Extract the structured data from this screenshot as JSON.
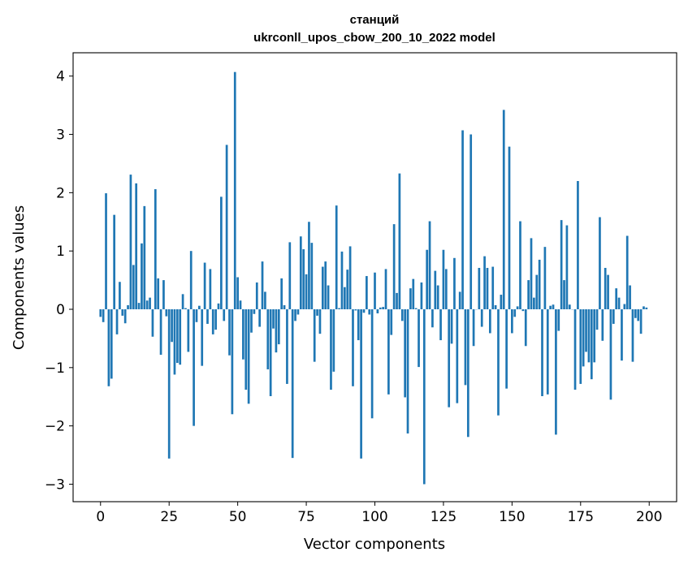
{
  "chart_data": {
    "type": "bar",
    "title": "станций",
    "subtitle": "ukrconll_upos_cbow_200_10_2022 model",
    "xlabel": "Vector components",
    "ylabel": "Components values",
    "xlim": [
      -10,
      210
    ],
    "ylim": [
      -3.3,
      4.4
    ],
    "x_ticks": [
      0,
      25,
      50,
      75,
      100,
      125,
      150,
      175,
      200
    ],
    "x_tick_labels": [
      "0",
      "25",
      "50",
      "75",
      "100",
      "125",
      "150",
      "175",
      "200"
    ],
    "y_ticks": [
      -3,
      -2,
      -1,
      0,
      1,
      2,
      3,
      4
    ],
    "y_tick_labels": [
      "−3",
      "−2",
      "−1",
      "0",
      "1",
      "2",
      "3",
      "4"
    ],
    "grid": false,
    "bar_color": "#1f77b4",
    "values": [
      -0.13,
      -0.22,
      1.99,
      -1.32,
      -1.19,
      1.62,
      -0.43,
      0.47,
      -0.11,
      -0.24,
      0.07,
      2.31,
      0.76,
      2.16,
      0.11,
      1.13,
      1.77,
      0.15,
      0.2,
      -0.47,
      2.06,
      0.53,
      -0.78,
      0.5,
      -0.12,
      -2.56,
      -0.56,
      -1.12,
      -0.92,
      -0.95,
      0.26,
      0.02,
      -0.73,
      1.0,
      -2.0,
      -0.22,
      0.06,
      -0.97,
      0.8,
      -0.25,
      0.69,
      -0.43,
      -0.35,
      0.1,
      1.93,
      -0.2,
      2.82,
      -0.79,
      -1.8,
      4.07,
      0.55,
      0.15,
      -0.86,
      -1.38,
      -1.62,
      -0.4,
      -0.08,
      0.46,
      -0.3,
      0.82,
      0.3,
      -1.03,
      -1.49,
      -0.33,
      -0.74,
      -0.6,
      0.53,
      0.07,
      -1.28,
      1.15,
      -2.55,
      -0.2,
      -0.09,
      1.25,
      1.03,
      0.6,
      1.5,
      1.14,
      -0.9,
      -0.11,
      -0.42,
      0.73,
      0.82,
      0.41,
      -1.38,
      -1.07,
      1.78,
      0.02,
      0.99,
      0.38,
      0.68,
      1.08,
      -1.32,
      -0.02,
      -0.53,
      -2.56,
      -0.06,
      0.57,
      -0.09,
      -1.87,
      0.63,
      -0.07,
      0.03,
      0.04,
      0.69,
      -1.46,
      -0.44,
      1.46,
      0.28,
      2.33,
      -0.2,
      -1.51,
      -2.13,
      0.36,
      0.52,
      0.02,
      -0.99,
      0.46,
      -3.0,
      1.02,
      1.51,
      -0.31,
      0.66,
      0.41,
      -0.53,
      1.02,
      0.69,
      -1.68,
      -0.59,
      0.88,
      -1.61,
      0.3,
      3.07,
      -1.3,
      -2.19,
      3.0,
      -0.63,
      0.0,
      0.71,
      -0.3,
      0.91,
      0.71,
      -0.41,
      0.73,
      0.07,
      -1.82,
      0.25,
      3.42,
      -1.36,
      2.79,
      -0.41,
      -0.13,
      0.05,
      1.51,
      -0.03,
      -0.63,
      0.5,
      1.22,
      0.2,
      0.59,
      0.85,
      -1.49,
      1.07,
      -1.46,
      0.06,
      0.08,
      -2.15,
      -0.37,
      1.53,
      0.5,
      1.44,
      0.08,
      0.0,
      -1.38,
      2.2,
      -1.28,
      -0.98,
      -0.73,
      -0.91,
      -1.2,
      -0.91,
      -0.35,
      1.58,
      -0.54,
      0.71,
      0.59,
      -1.55,
      -0.25,
      0.36,
      0.2,
      -0.88,
      0.09,
      1.26,
      0.41,
      -0.9,
      -0.15,
      -0.2,
      -0.42,
      0.05,
      0.03
    ]
  }
}
